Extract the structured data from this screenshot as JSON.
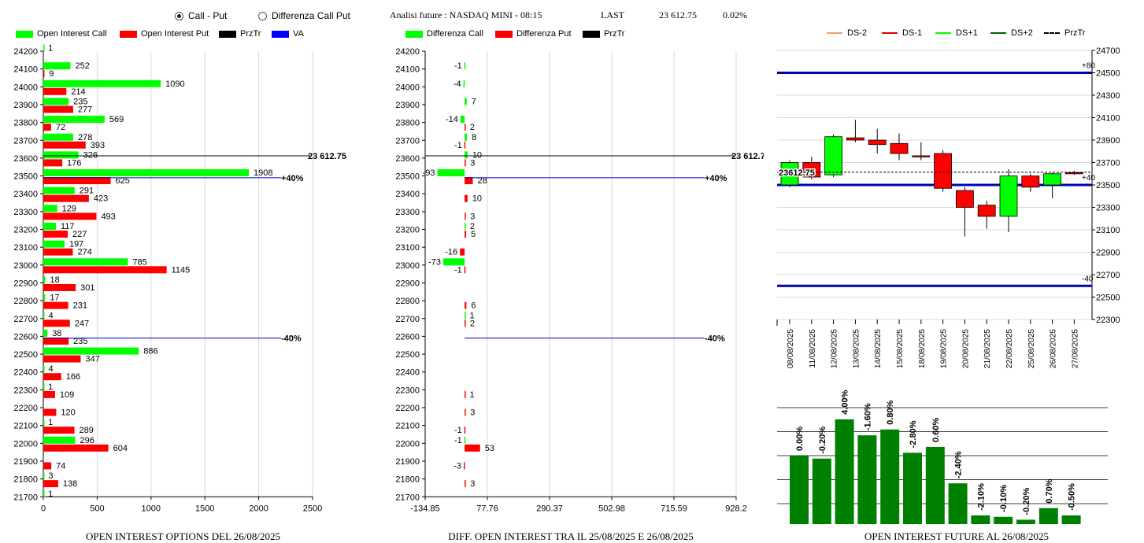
{
  "controls": {
    "radio_call_put": {
      "label": "Call - Put",
      "selected": true
    },
    "radio_diff": {
      "label": "Differenza Call Put",
      "selected": false
    }
  },
  "header": {
    "title": "Analisi future : NASDAQ MINI - 08:15",
    "last_label": "LAST",
    "last_value": "23 612.75",
    "change": "0.02%"
  },
  "colors": {
    "green": "#00ff00",
    "red": "#ff0000",
    "black": "#000000",
    "blue": "#0000ff",
    "dark_green": "#008000",
    "navy": "#0000b0"
  },
  "chart_data": [
    {
      "type": "bar",
      "orientation": "horizontal",
      "caption": "OPEN INTEREST OPTIONS DEL 26/08/2025",
      "legend": [
        "Open Interest Call",
        "Open Interest Put",
        "PrzTr",
        "VA"
      ],
      "xlim": [
        0,
        2500
      ],
      "xticks": [
        "0",
        "500",
        "1000",
        "1500",
        "2000",
        "2500"
      ],
      "strikes": [
        "24200",
        "24100",
        "24000",
        "23900",
        "23800",
        "23700",
        "23600",
        "23500",
        "23400",
        "23300",
        "23200",
        "23100",
        "23000",
        "22900",
        "22800",
        "22700",
        "22600",
        "22500",
        "22400",
        "22300",
        "22200",
        "22100",
        "22000",
        "21900",
        "21800",
        "21700"
      ],
      "series": [
        {
          "name": "Open Interest Call",
          "values": [
            1,
            252,
            1090,
            235,
            569,
            278,
            326,
            1908,
            291,
            129,
            117,
            197,
            785,
            18,
            17,
            4,
            38,
            886,
            4,
            1,
            null,
            1,
            296,
            null,
            3,
            1
          ]
        },
        {
          "name": "Open Interest Put",
          "values": [
            null,
            9,
            214,
            277,
            72,
            393,
            176,
            625,
            423,
            493,
            227,
            274,
            1145,
            301,
            231,
            247,
            235,
            347,
            166,
            109,
            120,
            289,
            604,
            74,
            138,
            null
          ]
        }
      ],
      "price_line": {
        "strike_value": 23612.75,
        "label": "23 612.75"
      },
      "va_lines": [
        {
          "strike_value": 23490,
          "label": "+40%"
        },
        {
          "strike_value": 22590,
          "label": "-40%"
        }
      ]
    },
    {
      "type": "bar",
      "orientation": "horizontal",
      "caption": "DIFF. OPEN INTEREST TRA IL 25/08/2025 E 26/08/2025",
      "legend": [
        "Differenza Call",
        "Differenza Put",
        "PrzTr"
      ],
      "xlim": [
        -134.85,
        928.2
      ],
      "xticks": [
        "-134.85",
        "77.76",
        "290.37",
        "502.98",
        "715.59",
        "928.2"
      ],
      "strikes": [
        "24200",
        "24100",
        "24000",
        "23900",
        "23800",
        "23700",
        "23600",
        "23500",
        "23400",
        "23300",
        "23200",
        "23100",
        "23000",
        "22900",
        "22800",
        "22700",
        "22600",
        "22500",
        "22400",
        "22300",
        "22200",
        "22100",
        "22000",
        "21900",
        "21800",
        "21700"
      ],
      "series": [
        {
          "name": "Differenza Call",
          "values": [
            null,
            -1,
            -4,
            7,
            -14,
            8,
            10,
            -93,
            null,
            null,
            2,
            null,
            -73,
            null,
            null,
            1,
            null,
            null,
            null,
            null,
            null,
            null,
            -1,
            null,
            null,
            null
          ]
        },
        {
          "name": "Differenza Put",
          "values": [
            null,
            null,
            null,
            null,
            2,
            -1,
            3,
            28,
            10,
            3,
            5,
            -16,
            -1,
            null,
            6,
            2,
            null,
            null,
            null,
            1,
            3,
            -1,
            53,
            -3,
            3,
            null
          ]
        }
      ],
      "price_line": {
        "strike_value": 23612.75,
        "label": "23 612.75"
      },
      "va_lines": [
        {
          "strike_value": 23490,
          "label": "+40%"
        },
        {
          "strike_value": 22590,
          "label": "-40%"
        }
      ]
    },
    {
      "type": "candlestick",
      "legend": [
        "DS-2",
        "DS-1",
        "DS+1",
        "DS+2",
        "PrzTr"
      ],
      "ylim": [
        22300,
        24700
      ],
      "yticks": [
        "24700",
        "24500",
        "24300",
        "24100",
        "23900",
        "23700",
        "23500",
        "23300",
        "23100",
        "22900",
        "22700",
        "22500",
        "22300"
      ],
      "dates": [
        "08/08/2025",
        "11/08/2025",
        "12/08/2025",
        "13/08/2025",
        "14/08/2025",
        "15/08/2025",
        "18/08/2025",
        "19/08/2025",
        "20/08/2025",
        "21/08/2025",
        "22/08/2025",
        "25/08/2025",
        "26/08/2025",
        "27/08/2025"
      ],
      "candles": [
        {
          "open": 23500,
          "close": 23700,
          "high": 23720,
          "low": 23480
        },
        {
          "open": 23700,
          "close": 23570,
          "high": 23750,
          "low": 23550
        },
        {
          "open": 23590,
          "close": 23930,
          "high": 23950,
          "low": 23570
        },
        {
          "open": 23920,
          "close": 23900,
          "high": 24080,
          "low": 23880
        },
        {
          "open": 23900,
          "close": 23860,
          "high": 24000,
          "low": 23780
        },
        {
          "open": 23870,
          "close": 23780,
          "high": 23960,
          "low": 23720
        },
        {
          "open": 23760,
          "close": 23750,
          "high": 23880,
          "low": 23720
        },
        {
          "open": 23780,
          "close": 23470,
          "high": 23810,
          "low": 23440
        },
        {
          "open": 23450,
          "close": 23300,
          "high": 23480,
          "low": 23040
        },
        {
          "open": 23320,
          "close": 23220,
          "high": 23360,
          "low": 23110
        },
        {
          "open": 23220,
          "close": 23580,
          "high": 23640,
          "low": 23080
        },
        {
          "open": 23580,
          "close": 23480,
          "high": 23600,
          "low": 23440
        },
        {
          "open": 23500,
          "close": 23600,
          "high": 23610,
          "low": 23380
        },
        {
          "open": 23610,
          "close": 23605,
          "high": 23625,
          "low": 23590
        }
      ],
      "price_line": {
        "value": 23612.75,
        "label": "23612.75"
      },
      "ds_lines": [
        {
          "value": 24500,
          "label": "+80"
        },
        {
          "value": 23500,
          "label": "+40"
        },
        {
          "value": 22600,
          "label": "-40"
        }
      ]
    },
    {
      "type": "bar",
      "caption": "OPEN INTEREST FUTURE AL 26/08/2025",
      "labels": [
        "0.00%",
        "-0.20%",
        "4.00%",
        "-1.60%",
        "0.80%",
        "-2.80%",
        "0.60%",
        "-2.40%",
        "-2.10%",
        "-0.10%",
        "-0.20%",
        "0.70%",
        "-0.50%"
      ],
      "values": [
        0.47,
        0.45,
        0.72,
        0.61,
        0.65,
        0.49,
        0.53,
        0.28,
        0.06,
        0.05,
        0.03,
        0.11,
        0.06
      ]
    }
  ]
}
